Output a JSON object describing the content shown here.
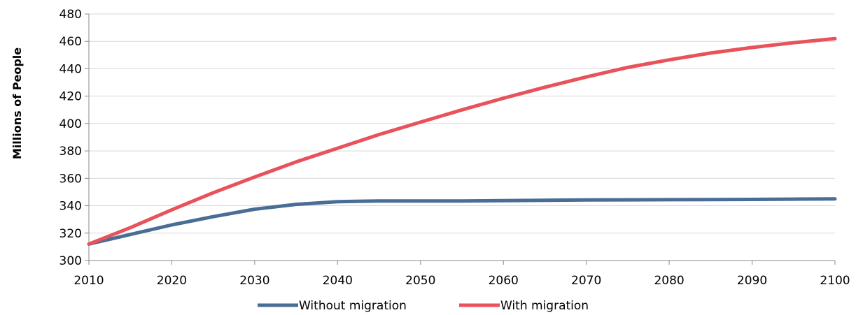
{
  "chart_data": {
    "type": "line",
    "title": "",
    "xlabel": "",
    "ylabel": "Millions of People",
    "xlim": [
      2010,
      2100
    ],
    "ylim": [
      300,
      480
    ],
    "x_ticks": [
      2010,
      2020,
      2030,
      2040,
      2050,
      2060,
      2070,
      2080,
      2090,
      2100
    ],
    "y_ticks": [
      300,
      320,
      340,
      360,
      380,
      400,
      420,
      440,
      460,
      480
    ],
    "grid": "horizontal",
    "legend_position": "bottom",
    "x": [
      2010,
      2015,
      2020,
      2025,
      2030,
      2035,
      2040,
      2045,
      2050,
      2055,
      2060,
      2065,
      2070,
      2075,
      2080,
      2085,
      2090,
      2095,
      2100
    ],
    "series": [
      {
        "name": "Without migration",
        "color": "#4A6D96",
        "values": [
          312,
          319,
          326,
          332,
          337.5,
          341,
          343,
          343.5,
          343.5,
          343.5,
          343.7,
          344,
          344.2,
          344.3,
          344.4,
          344.5,
          344.6,
          344.8,
          345
        ]
      },
      {
        "name": "With migration",
        "color": "#E8525A",
        "values": [
          312,
          324,
          337,
          349.5,
          361,
          372,
          382,
          392,
          401,
          410,
          418.5,
          426.5,
          434,
          441,
          446.5,
          451.5,
          455.5,
          459,
          462
        ]
      }
    ]
  }
}
